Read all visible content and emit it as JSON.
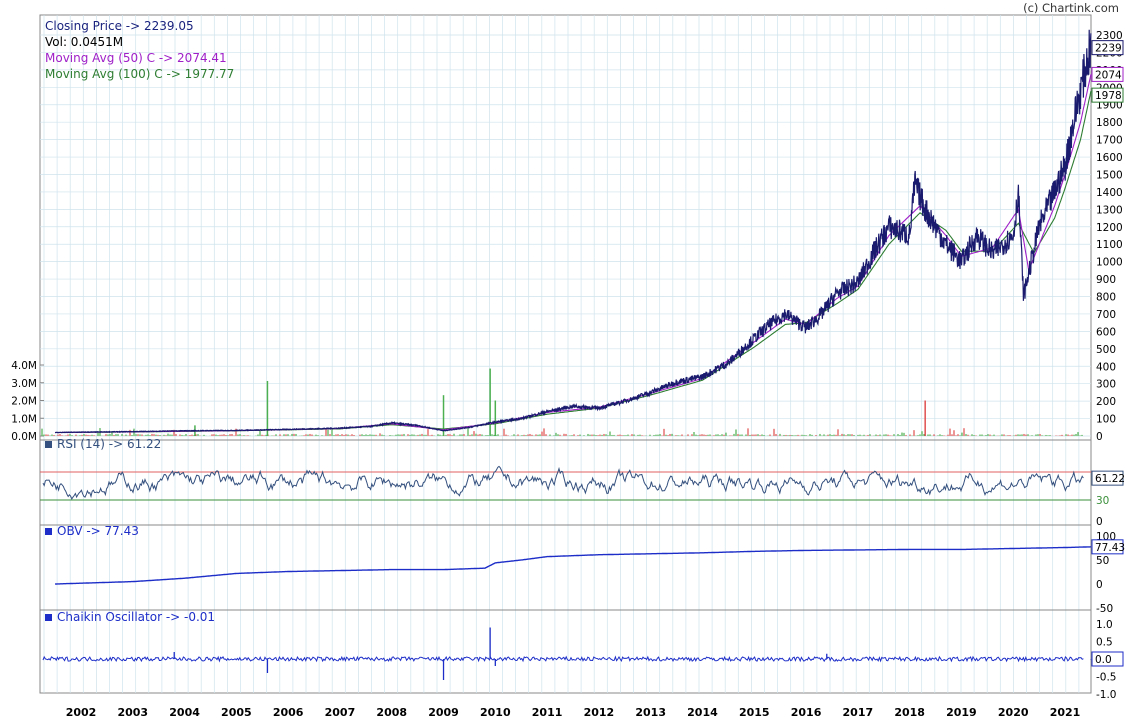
{
  "copyright": "(c) Chartink.com",
  "legend": {
    "close": "Closing Price -> 2239.05",
    "vol": "Vol: 0.0451M",
    "ma50": "Moving Avg (50) C -> 2074.41",
    "ma100": "Moving Avg (100) C -> 1977.77"
  },
  "tags": {
    "close": "2239",
    "ma50": "2074",
    "ma100": "1978",
    "rsi": "61.22",
    "obv": "77.43",
    "chaikin": "0.0"
  },
  "panes": {
    "rsi": "RSI (14) -> 61.22",
    "obv": "OBV -> 77.43",
    "chaikin": "Chaikin Oscillator -> -0.01"
  },
  "colors": {
    "close": "#1a1a6e",
    "ma50": "#a020c8",
    "ma100": "#2e7d32",
    "rsi": "#34507e",
    "rsi_hi": "#e06060",
    "rsi_lo": "#3a8f3a",
    "obv": "#1d2ec8",
    "chaikin": "#1d2ec8",
    "vol_up": "#4caf50",
    "vol_down": "#e05050",
    "grid": "#cfe3ec"
  },
  "chart_data": [
    {
      "type": "line",
      "title": "Closing Price -> 2239.05",
      "x": [
        "2002",
        "2003",
        "2004",
        "2005",
        "2006",
        "2007",
        "2008",
        "2009",
        "2010",
        "2011",
        "2012",
        "2013",
        "2014",
        "2015",
        "2016",
        "2017",
        "2018",
        "2019",
        "2020",
        "2021"
      ],
      "ylim": [
        0,
        2300
      ],
      "y_ticks": [
        "2300",
        "2200",
        "2100",
        "2000",
        "1900",
        "1800",
        "1700",
        "1600",
        "1500",
        "1400",
        "1300",
        "1200",
        "1100",
        "1000",
        "900",
        "800",
        "700",
        "600",
        "500",
        "400",
        "300",
        "200",
        "100",
        "0"
      ],
      "series": [
        {
          "name": "Closing Price",
          "values": [
            [
              2001.5,
              20
            ],
            [
              2002,
              22
            ],
            [
              2003,
              25
            ],
            [
              2004,
              30
            ],
            [
              2005,
              32
            ],
            [
              2006,
              38
            ],
            [
              2007,
              45
            ],
            [
              2007.6,
              55
            ],
            [
              2008,
              75
            ],
            [
              2008.5,
              60
            ],
            [
              2009,
              30
            ],
            [
              2009.5,
              50
            ],
            [
              2010,
              80
            ],
            [
              2010.5,
              100
            ],
            [
              2011,
              140
            ],
            [
              2011.5,
              170
            ],
            [
              2012,
              160
            ],
            [
              2012.5,
              200
            ],
            [
              2013,
              250
            ],
            [
              2013.5,
              310
            ],
            [
              2014,
              340
            ],
            [
              2014.5,
              420
            ],
            [
              2015,
              560
            ],
            [
              2015.3,
              640
            ],
            [
              2015.6,
              700
            ],
            [
              2016,
              620
            ],
            [
              2016.3,
              700
            ],
            [
              2016.6,
              820
            ],
            [
              2017,
              880
            ],
            [
              2017.3,
              1050
            ],
            [
              2017.6,
              1200
            ],
            [
              2018,
              1150
            ],
            [
              2018.1,
              1450
            ],
            [
              2018.3,
              1300
            ],
            [
              2018.7,
              1100
            ],
            [
              2019,
              1000
            ],
            [
              2019.3,
              1150
            ],
            [
              2019.6,
              1050
            ],
            [
              2020,
              1150
            ],
            [
              2020.1,
              1400
            ],
            [
              2020.2,
              800
            ],
            [
              2020.5,
              1200
            ],
            [
              2020.8,
              1400
            ],
            [
              2021,
              1550
            ],
            [
              2021.2,
              1850
            ],
            [
              2021.35,
              2050
            ],
            [
              2021.5,
              2239
            ]
          ]
        },
        {
          "name": "Moving Avg (50) C",
          "values": [
            [
              2001.5,
              20
            ],
            [
              2003,
              24
            ],
            [
              2005,
              31
            ],
            [
              2007,
              43
            ],
            [
              2008,
              70
            ],
            [
              2009,
              35
            ],
            [
              2010,
              75
            ],
            [
              2011,
              135
            ],
            [
              2012,
              165
            ],
            [
              2013,
              245
            ],
            [
              2014,
              330
            ],
            [
              2015,
              540
            ],
            [
              2015.6,
              670
            ],
            [
              2016,
              640
            ],
            [
              2016.6,
              790
            ],
            [
              2017,
              860
            ],
            [
              2017.6,
              1150
            ],
            [
              2018.2,
              1320
            ],
            [
              2018.7,
              1150
            ],
            [
              2019,
              1030
            ],
            [
              2019.6,
              1080
            ],
            [
              2020.1,
              1300
            ],
            [
              2020.3,
              950
            ],
            [
              2020.8,
              1320
            ],
            [
              2021,
              1500
            ],
            [
              2021.3,
              1800
            ],
            [
              2021.5,
              2074
            ]
          ]
        },
        {
          "name": "Moving Avg (100) C",
          "values": [
            [
              2001.5,
              20
            ],
            [
              2003,
              23
            ],
            [
              2005,
              30
            ],
            [
              2007,
              41
            ],
            [
              2008,
              65
            ],
            [
              2009,
              40
            ],
            [
              2010,
              70
            ],
            [
              2011,
              125
            ],
            [
              2012,
              160
            ],
            [
              2013,
              235
            ],
            [
              2014,
              320
            ],
            [
              2015,
              510
            ],
            [
              2015.6,
              640
            ],
            [
              2016,
              650
            ],
            [
              2016.6,
              760
            ],
            [
              2017,
              840
            ],
            [
              2017.6,
              1100
            ],
            [
              2018.2,
              1280
            ],
            [
              2018.7,
              1180
            ],
            [
              2019,
              1060
            ],
            [
              2019.6,
              1060
            ],
            [
              2020.1,
              1220
            ],
            [
              2020.4,
              1050
            ],
            [
              2020.8,
              1250
            ],
            [
              2021,
              1420
            ],
            [
              2021.3,
              1700
            ],
            [
              2021.5,
              1978
            ]
          ]
        }
      ]
    },
    {
      "type": "bar",
      "title": "Vol: 0.0451M",
      "ylim": [
        0,
        4000000
      ],
      "y_ticks": [
        "4.0M",
        "3.0M",
        "2.0M",
        "1.0M",
        "0.0M"
      ],
      "spikes": [
        [
          2004.2,
          0.6
        ],
        [
          2005.6,
          3.1
        ],
        [
          2009.0,
          2.3
        ],
        [
          2009.9,
          3.8
        ],
        [
          2010.0,
          2.0
        ],
        [
          2018.3,
          2.0
        ]
      ]
    },
    {
      "type": "line",
      "title": "RSI (14) -> 61.22",
      "ylim": [
        0,
        100
      ],
      "y_ticks": [
        "61.22",
        "30",
        "0"
      ],
      "series": [
        {
          "name": "RSI (14)",
          "values": "oscillating 30-70, last 61.22"
        }
      ]
    },
    {
      "type": "line",
      "title": "OBV -> 77.43",
      "ylim": [
        -50,
        100
      ],
      "y_ticks": [
        "100",
        "77.43",
        "50",
        "0",
        "-50"
      ],
      "series": [
        {
          "name": "OBV",
          "values": [
            [
              2001.5,
              0
            ],
            [
              2003,
              5
            ],
            [
              2004,
              12
            ],
            [
              2005,
              22
            ],
            [
              2006,
              26
            ],
            [
              2007,
              28
            ],
            [
              2008,
              30
            ],
            [
              2009,
              30
            ],
            [
              2009.8,
              33
            ],
            [
              2010,
              44
            ],
            [
              2010.5,
              50
            ],
            [
              2011,
              57
            ],
            [
              2012,
              61
            ],
            [
              2013,
              63
            ],
            [
              2014,
              65
            ],
            [
              2015,
              68
            ],
            [
              2016,
              70
            ],
            [
              2017,
              71
            ],
            [
              2018,
              72
            ],
            [
              2019,
              72
            ],
            [
              2020,
              74
            ],
            [
              2021,
              76
            ],
            [
              2021.5,
              77.43
            ]
          ]
        }
      ]
    },
    {
      "type": "line",
      "title": "Chaikin Oscillator -> -0.01",
      "ylim": [
        -1,
        1
      ],
      "y_ticks": [
        "1.0",
        "0.5",
        "0.0",
        "-0.5",
        "-1.0"
      ],
      "series": [
        {
          "name": "Chaikin Oscillator",
          "values": [
            [
              2003.8,
              0.2
            ],
            [
              2005.6,
              -0.4
            ],
            [
              2009.0,
              -0.6
            ],
            [
              2009.9,
              0.9
            ],
            [
              2010.0,
              -0.2
            ],
            [
              2016.4,
              0.15
            ],
            [
              2021.5,
              -0.01
            ]
          ]
        }
      ]
    }
  ]
}
